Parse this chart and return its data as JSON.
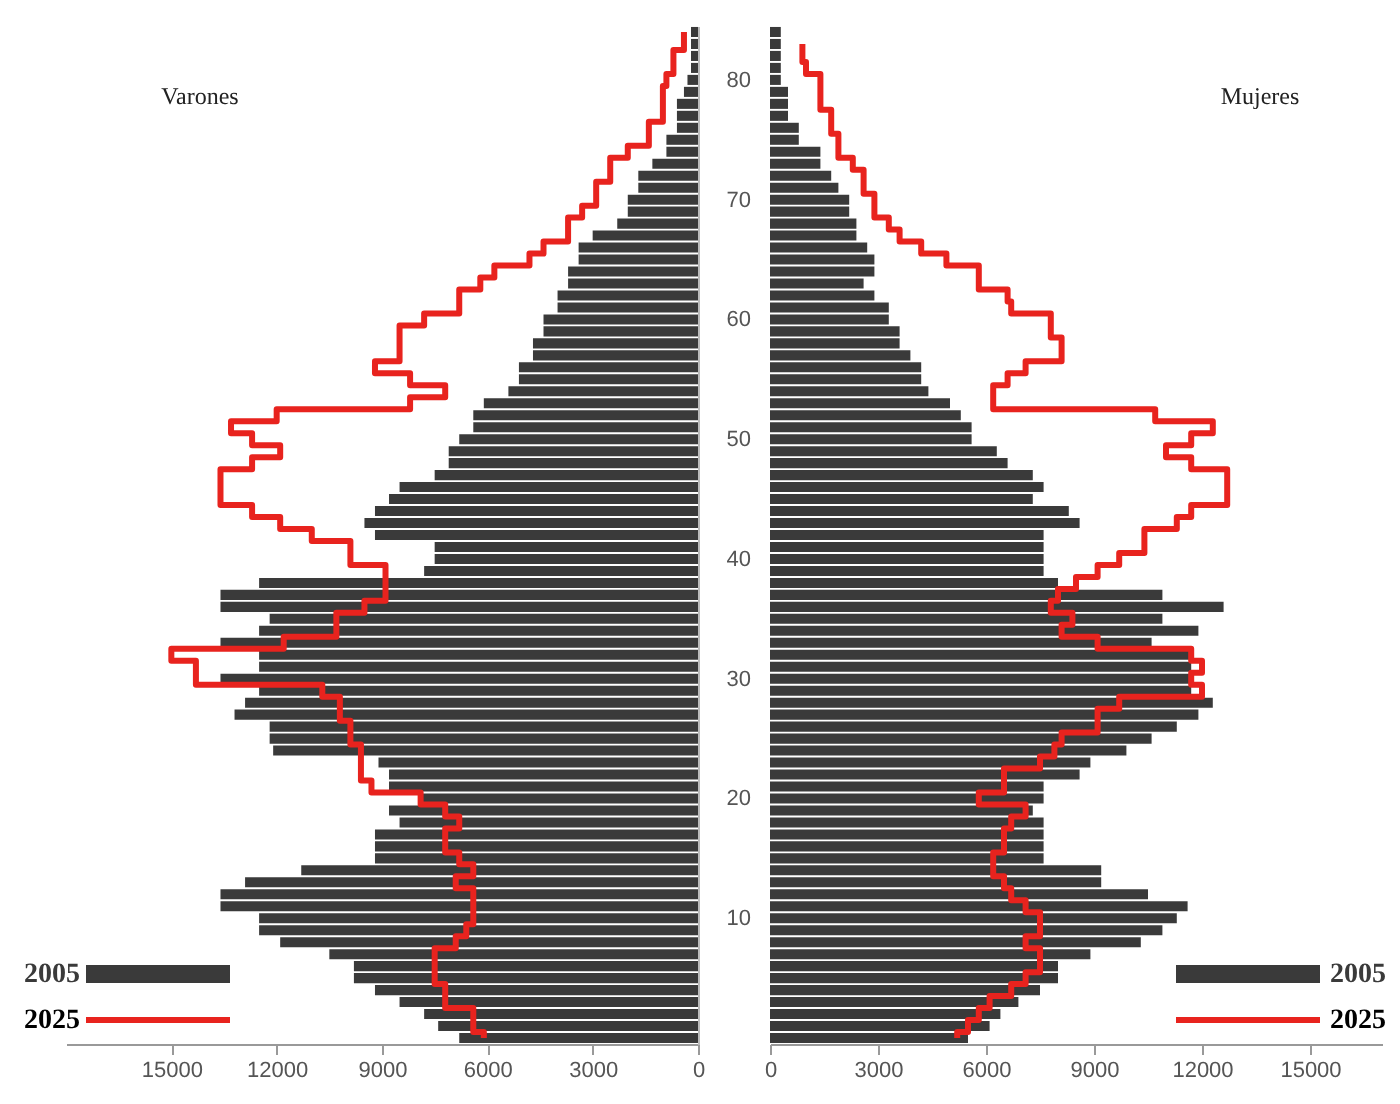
{
  "chart_data": [
    {
      "type": "bar",
      "orientation": "horizontal",
      "title": "Varones",
      "legend": "bottom left",
      "tick_labels": "x",
      "categories": [
        null,
        null,
        null,
        null,
        "80",
        null,
        null,
        null,
        null,
        null,
        null,
        null,
        null,
        null,
        "70",
        null,
        null,
        null,
        null,
        null,
        null,
        null,
        null,
        null,
        "60",
        null,
        null,
        null,
        null,
        null,
        null,
        null,
        null,
        null,
        "50",
        null,
        null,
        null,
        null,
        null,
        null,
        null,
        null,
        null,
        "40",
        null,
        null,
        null,
        null,
        null,
        null,
        null,
        null,
        null,
        "30",
        null,
        null,
        null,
        null,
        null,
        null,
        null,
        null,
        null,
        "20",
        null,
        null,
        null,
        null,
        null,
        null,
        null,
        null,
        null,
        "10",
        null,
        null,
        null,
        null,
        null,
        null,
        null,
        null,
        null,
        null
      ],
      "xlim": [
        18000,
        0
      ],
      "xticks": [
        15000,
        12000,
        9000,
        6000,
        3000,
        0
      ],
      "series": [
        {
          "name": "2005",
          "type": "bar",
          "color": "#3a3a3a",
          "values": [
            200,
            200,
            200,
            200,
            300,
            400,
            600,
            600,
            600,
            900,
            900,
            1300,
            1700,
            1700,
            2000,
            2000,
            2300,
            3000,
            3400,
            3400,
            3700,
            3700,
            4000,
            4000,
            4400,
            4400,
            4700,
            4700,
            5100,
            5100,
            5400,
            6100,
            6400,
            6400,
            6800,
            7100,
            7100,
            7500,
            8500,
            8800,
            9200,
            9500,
            9200,
            7500,
            7500,
            7800,
            12500,
            13600,
            13600,
            12200,
            12500,
            13600,
            12500,
            12500,
            13600,
            12500,
            12900,
            13200,
            12200,
            12200,
            12100,
            9100,
            8800,
            8800,
            7900,
            8800,
            8500,
            9200,
            9200,
            9200,
            11300,
            12900,
            13600,
            13600,
            12500,
            12500,
            11900,
            10500,
            9800,
            9800,
            9200,
            8500,
            7800,
            7400,
            6800
          ]
        },
        {
          "name": "2025",
          "type": "step",
          "color": "#e8231e",
          "values": [
            400,
            400,
            700,
            700,
            900,
            1000,
            1000,
            1000,
            1400,
            1400,
            2000,
            2500,
            2500,
            2900,
            2900,
            3300,
            3700,
            3700,
            4400,
            4800,
            5800,
            6200,
            6800,
            6800,
            7800,
            8500,
            8500,
            8500,
            9200,
            8200,
            7200,
            8200,
            12000,
            13300,
            12700,
            11900,
            12700,
            13600,
            13600,
            13600,
            12700,
            11900,
            11000,
            9900,
            9900,
            8900,
            8900,
            8900,
            9500,
            10300,
            10300,
            11800,
            15000,
            14300,
            14300,
            10700,
            10200,
            10200,
            9900,
            9900,
            9600,
            9600,
            9600,
            9300,
            7900,
            7200,
            6800,
            7200,
            7200,
            6800,
            6400,
            6900,
            6400,
            6400,
            6400,
            6600,
            6900,
            7500,
            7500,
            7500,
            7200,
            7200,
            6400,
            6400,
            6100
          ]
        }
      ]
    },
    {
      "type": "bar",
      "orientation": "horizontal",
      "title": "Mujeres",
      "legend": "bottom right",
      "categories": [
        null,
        null,
        null,
        null,
        "80",
        null,
        null,
        null,
        null,
        null,
        null,
        null,
        null,
        null,
        "70",
        null,
        null,
        null,
        null,
        null,
        null,
        null,
        null,
        null,
        "60",
        null,
        null,
        null,
        null,
        null,
        null,
        null,
        null,
        null,
        "50",
        null,
        null,
        null,
        null,
        null,
        null,
        null,
        null,
        null,
        "40",
        null,
        null,
        null,
        null,
        null,
        null,
        null,
        null,
        null,
        "30",
        null,
        null,
        null,
        null,
        null,
        null,
        null,
        null,
        null,
        "20",
        null,
        null,
        null,
        null,
        null,
        null,
        null,
        null,
        null,
        "10",
        null,
        null,
        null,
        null,
        null,
        null,
        null,
        null,
        null,
        null
      ],
      "xlim": [
        0,
        17000
      ],
      "xticks": [
        0,
        3000,
        6000,
        9000,
        12000,
        15000
      ],
      "series": [
        {
          "name": "2005",
          "type": "bar",
          "color": "#3a3a3a",
          "values": [
            300,
            300,
            300,
            300,
            300,
            500,
            500,
            500,
            800,
            800,
            1400,
            1400,
            1700,
            1900,
            2200,
            2200,
            2400,
            2400,
            2700,
            2900,
            2900,
            2600,
            2900,
            3300,
            3300,
            3600,
            3600,
            3900,
            4200,
            4200,
            4400,
            5000,
            5300,
            5600,
            5600,
            6300,
            6600,
            7300,
            7600,
            7300,
            8300,
            8600,
            7600,
            7600,
            7600,
            7600,
            8000,
            10900,
            12600,
            10900,
            11900,
            10600,
            11700,
            11700,
            11700,
            11700,
            12300,
            11900,
            11300,
            10600,
            9900,
            8900,
            8600,
            7600,
            7600,
            7300,
            7600,
            7600,
            7600,
            7600,
            9200,
            9200,
            10500,
            11600,
            11300,
            10900,
            10300,
            8900,
            8000,
            8000,
            7500,
            6900,
            6400,
            6100,
            5500
          ]
        },
        {
          "name": "2025",
          "type": "step",
          "color": "#e8231e",
          "values": [
            null,
            900,
            900,
            1000,
            1400,
            1400,
            1400,
            1700,
            1700,
            1900,
            1900,
            2300,
            2600,
            2600,
            2900,
            2900,
            3300,
            3600,
            4200,
            4900,
            5800,
            5800,
            6600,
            6700,
            7800,
            7800,
            8100,
            8100,
            7100,
            6600,
            6200,
            6200,
            10700,
            12300,
            11700,
            11000,
            11700,
            12700,
            12700,
            12700,
            11700,
            11300,
            10400,
            10400,
            9700,
            9100,
            8500,
            8000,
            7800,
            8400,
            8100,
            9100,
            11700,
            12000,
            11700,
            12000,
            9700,
            9100,
            9100,
            8100,
            7900,
            7500,
            6500,
            6500,
            5800,
            7100,
            6700,
            6500,
            6500,
            6200,
            6200,
            6500,
            6700,
            7100,
            7500,
            7500,
            7100,
            7500,
            7500,
            7100,
            6700,
            6100,
            5800,
            5500,
            5200
          ]
        }
      ]
    }
  ]
}
